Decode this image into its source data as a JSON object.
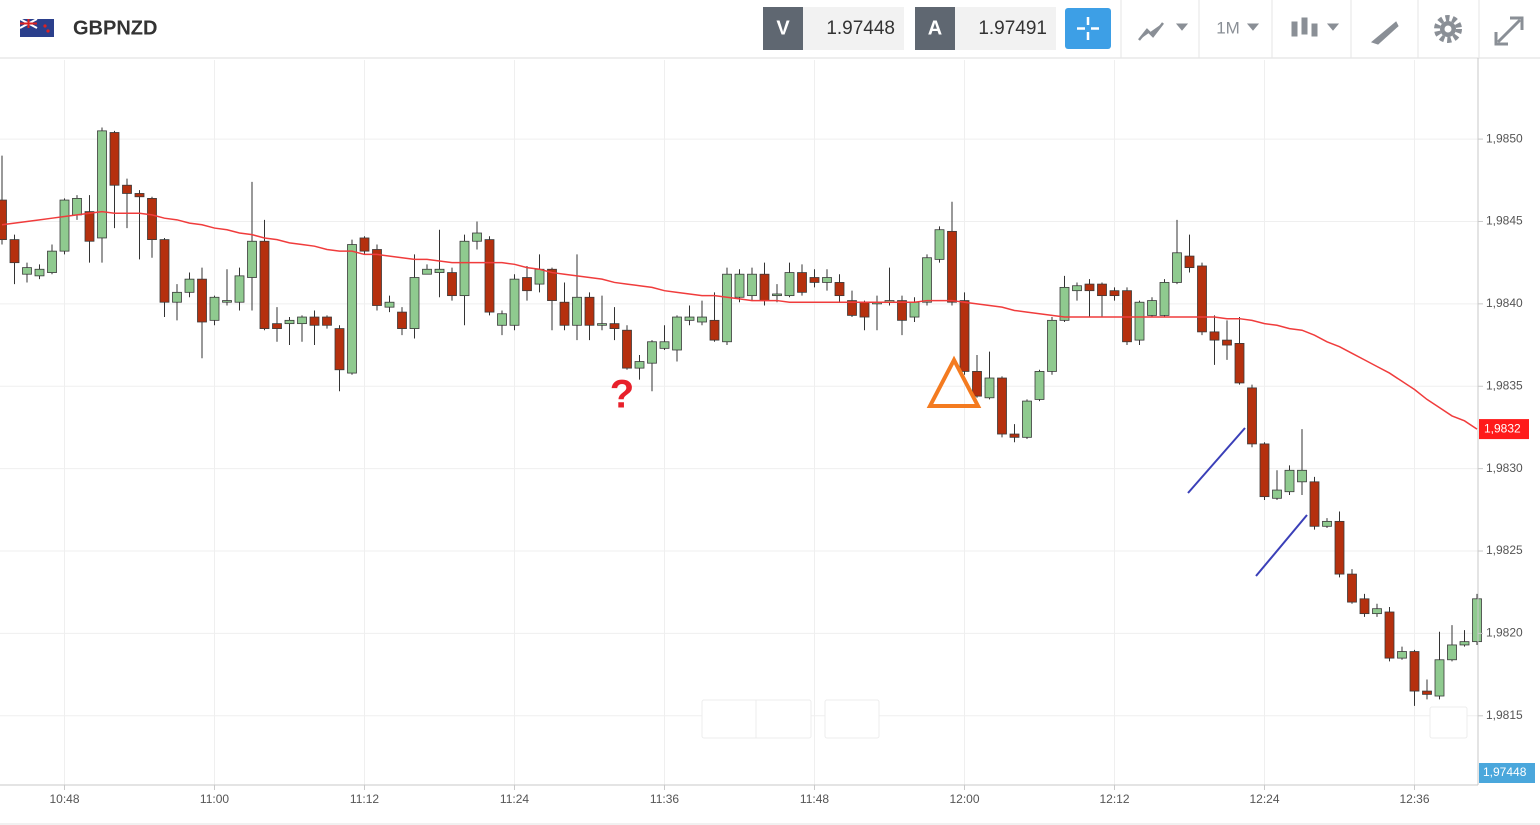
{
  "header": {
    "symbol": "GBPNZD",
    "sell_label": "V",
    "sell_price": "1.97448",
    "buy_label": "A",
    "buy_price": "1.97491",
    "timeframe": "1M"
  },
  "chart_data": {
    "type": "candlestick",
    "categories": [
      null,
      null,
      null,
      null,
      null,
      "10:48",
      null,
      null,
      null,
      null,
      null,
      null,
      null,
      null,
      null,
      null,
      null,
      "11:00",
      null,
      null,
      null,
      null,
      null,
      null,
      null,
      null,
      null,
      null,
      null,
      "11:12",
      null,
      null,
      null,
      null,
      null,
      null,
      null,
      null,
      null,
      null,
      null,
      "11:24",
      null,
      null,
      null,
      null,
      null,
      null,
      null,
      null,
      null,
      null,
      null,
      "11:36",
      null,
      null,
      null,
      null,
      null,
      null,
      null,
      null,
      null,
      null,
      null,
      "11:48",
      null,
      null,
      null,
      null,
      null,
      null,
      null,
      null,
      null,
      null,
      null,
      "12:00",
      null,
      null,
      null,
      null,
      null,
      null,
      null,
      null,
      null,
      null,
      null,
      "12:12",
      null,
      null,
      null,
      null,
      null,
      null,
      null,
      null,
      null,
      null,
      null,
      "12:24",
      null,
      null,
      null,
      null,
      null,
      null,
      null,
      null,
      null,
      null,
      null,
      "12:36",
      null,
      null,
      null,
      null,
      null
    ],
    "open": [
      1.98463,
      1.98439,
      1.98418,
      1.98417,
      1.98419,
      1.98432,
      1.98454,
      1.98456,
      1.9844,
      1.98504,
      1.98472,
      1.98467,
      1.98464,
      1.98439,
      1.98401,
      1.98407,
      1.98415,
      1.9839,
      1.98401,
      1.98401,
      1.98416,
      1.98438,
      1.98388,
      1.98388,
      1.98388,
      1.98392,
      1.98392,
      1.98385,
      1.98358,
      1.9844,
      1.98433,
      1.98398,
      1.98395,
      1.98385,
      1.98418,
      1.98419,
      1.98419,
      1.98405,
      1.98438,
      1.98439,
      1.98387,
      1.98387,
      1.98416,
      1.98412,
      1.98421,
      1.98401,
      1.98387,
      1.98404,
      1.98387,
      1.98388,
      1.98384,
      1.98361,
      1.98364,
      1.98373,
      1.98372,
      1.9839,
      1.98389,
      1.9839,
      1.98377,
      1.98404,
      1.98405,
      1.98418,
      1.98405,
      1.98405,
      1.98419,
      1.98416,
      1.98413,
      1.98413,
      1.98402,
      1.98401,
      1.984,
      1.98401,
      1.98402,
      1.98392,
      1.98401,
      1.98427,
      1.98444,
      1.98402,
      1.98359,
      1.98343,
      1.98355,
      1.98321,
      1.98319,
      1.98342,
      1.98359,
      1.9839,
      1.98408,
      1.98412,
      1.98412,
      1.98408,
      1.98408,
      1.98378,
      1.98393,
      1.98393,
      1.98413,
      1.98429,
      1.98423,
      1.98383,
      1.98378,
      1.98376,
      1.98349,
      1.98315,
      1.98282,
      1.98286,
      1.98292,
      1.98292,
      1.98265,
      1.98268,
      1.98236,
      1.98221,
      1.98212,
      1.98213,
      1.98185,
      1.98189,
      1.98165,
      1.98162,
      1.98184,
      1.98193,
      1.98195
    ],
    "high": [
      1.9849,
      1.98442,
      1.98425,
      1.98424,
      1.98436,
      1.98464,
      1.98466,
      1.98466,
      1.98507,
      1.98505,
      1.98476,
      1.98469,
      1.98465,
      1.9844,
      1.98412,
      1.98419,
      1.98422,
      1.98405,
      1.98421,
      1.98422,
      1.98474,
      1.98451,
      1.98398,
      1.98392,
      1.98393,
      1.98396,
      1.98393,
      1.98387,
      1.98439,
      1.98441,
      1.98436,
      1.98405,
      1.98398,
      1.9843,
      1.98424,
      1.98445,
      1.98422,
      1.98442,
      1.9845,
      1.98441,
      1.98396,
      1.98418,
      1.98423,
      1.9843,
      1.98422,
      1.98413,
      1.9843,
      1.98407,
      1.98405,
      1.98398,
      1.98387,
      1.98369,
      1.98378,
      1.98387,
      1.98393,
      1.98399,
      1.98402,
      1.98407,
      1.98422,
      1.98421,
      1.98422,
      1.98425,
      1.98412,
      1.98425,
      1.98424,
      1.98421,
      1.98421,
      1.98418,
      1.98408,
      1.98402,
      1.98405,
      1.98422,
      1.98405,
      1.98404,
      1.9843,
      1.98447,
      1.98462,
      1.98407,
      1.98369,
      1.98371,
      1.98356,
      1.98327,
      1.98342,
      1.9836,
      1.98392,
      1.98417,
      1.98413,
      1.98415,
      1.98413,
      1.9841,
      1.9841,
      1.98402,
      1.98404,
      1.98415,
      1.98451,
      1.98442,
      1.98425,
      1.98393,
      1.9839,
      1.98392,
      1.98351,
      1.98316,
      1.98299,
      1.98302,
      1.98324,
      1.98295,
      1.9827,
      1.98274,
      1.98239,
      1.98224,
      1.98218,
      1.98216,
      1.98192,
      1.9819,
      1.98172,
      1.98201,
      1.98205,
      1.98202,
      1.98224
    ],
    "low": [
      1.98436,
      1.98412,
      1.98413,
      1.98415,
      1.98418,
      1.9843,
      1.98451,
      1.98425,
      1.98425,
      1.98446,
      1.98446,
      1.98427,
      1.98428,
      1.98392,
      1.9839,
      1.98404,
      1.98367,
      1.98387,
      1.98399,
      1.98396,
      1.98396,
      1.98384,
      1.98377,
      1.98375,
      1.98377,
      1.98375,
      1.98385,
      1.98347,
      1.98357,
      1.9843,
      1.98396,
      1.98395,
      1.98381,
      1.98379,
      1.98418,
      1.98404,
      1.98402,
      1.98387,
      1.98433,
      1.98393,
      1.98381,
      1.98384,
      1.98402,
      1.98407,
      1.98384,
      1.98384,
      1.98378,
      1.98378,
      1.98384,
      1.98378,
      1.9836,
      1.98354,
      1.98347,
      1.98372,
      1.98365,
      1.98387,
      1.98387,
      1.98377,
      1.98375,
      1.98401,
      1.98402,
      1.98399,
      1.98401,
      1.98404,
      1.98405,
      1.9841,
      1.98408,
      1.98401,
      1.98392,
      1.98384,
      1.98384,
      1.98399,
      1.98381,
      1.98389,
      1.98399,
      1.98425,
      1.98399,
      1.98357,
      1.98343,
      1.98342,
      1.98319,
      1.98316,
      1.98318,
      1.98341,
      1.98357,
      1.98389,
      1.98402,
      1.98392,
      1.98392,
      1.98402,
      1.98375,
      1.98375,
      1.98392,
      1.98392,
      1.98412,
      1.98419,
      1.98381,
      1.98363,
      1.98366,
      1.98351,
      1.98313,
      1.98281,
      1.98281,
      1.98284,
      1.98284,
      1.98263,
      1.98264,
      1.98234,
      1.98218,
      1.9821,
      1.9821,
      1.98183,
      1.98184,
      1.98156,
      1.9816,
      1.9816,
      1.98183,
      1.98192,
      1.98193
    ],
    "close": [
      1.98439,
      1.98425,
      1.98422,
      1.98421,
      1.98432,
      1.98463,
      1.98464,
      1.98438,
      1.98505,
      1.98472,
      1.98467,
      1.98465,
      1.98439,
      1.98401,
      1.98407,
      1.98415,
      1.98389,
      1.98404,
      1.98402,
      1.98417,
      1.98438,
      1.98385,
      1.98385,
      1.9839,
      1.98392,
      1.98387,
      1.98387,
      1.9836,
      1.98436,
      1.98432,
      1.98399,
      1.98401,
      1.98385,
      1.98416,
      1.98421,
      1.98421,
      1.98405,
      1.98438,
      1.98443,
      1.98395,
      1.98394,
      1.98415,
      1.98408,
      1.98421,
      1.98402,
      1.98387,
      1.98404,
      1.98387,
      1.98388,
      1.98385,
      1.98361,
      1.98365,
      1.98377,
      1.98377,
      1.98392,
      1.98392,
      1.98392,
      1.98378,
      1.98418,
      1.98418,
      1.98418,
      1.98402,
      1.98406,
      1.98419,
      1.98407,
      1.98413,
      1.98416,
      1.98405,
      1.98393,
      1.98392,
      1.98401,
      1.98402,
      1.9839,
      1.98401,
      1.98428,
      1.98445,
      1.98401,
      1.98359,
      1.98344,
      1.98355,
      1.98321,
      1.98319,
      1.98341,
      1.98359,
      1.9839,
      1.9841,
      1.98411,
      1.98408,
      1.98405,
      1.98405,
      1.98377,
      1.98401,
      1.98402,
      1.98413,
      1.98431,
      1.98422,
      1.98383,
      1.98378,
      1.98375,
      1.98352,
      1.98315,
      1.98283,
      1.98287,
      1.98299,
      1.98299,
      1.98265,
      1.98268,
      1.98236,
      1.98219,
      1.98212,
      1.98215,
      1.98185,
      1.98189,
      1.98165,
      1.98163,
      1.98184,
      1.98193,
      1.98195,
      1.98221
    ],
    "up_color": "#8fca8f",
    "down_color": "#b5300e",
    "moving_average": {
      "color": "#f03c3c",
      "value_label": "1,9832",
      "values": [
        1.98448,
        1.98449,
        1.9845,
        1.98451,
        1.98452,
        1.98453,
        1.98454,
        1.98455,
        1.98456,
        1.98455,
        1.98455,
        1.98455,
        1.98454,
        1.98452,
        1.98451,
        1.98449,
        1.98448,
        1.98446,
        1.98445,
        1.98443,
        1.98442,
        1.9844,
        1.98439,
        1.98437,
        1.98436,
        1.98435,
        1.98433,
        1.98432,
        1.98432,
        1.9843,
        1.9843,
        1.98429,
        1.98428,
        1.98427,
        1.98427,
        1.98426,
        1.98425,
        1.98425,
        1.98425,
        1.98425,
        1.98425,
        1.98424,
        1.98422,
        1.98421,
        1.98419,
        1.98418,
        1.98417,
        1.98416,
        1.98415,
        1.98413,
        1.98412,
        1.98411,
        1.9841,
        1.98408,
        1.98407,
        1.98406,
        1.98405,
        1.98405,
        1.98404,
        1.98403,
        1.98402,
        1.98402,
        1.98402,
        1.98401,
        1.98401,
        1.98401,
        1.98401,
        1.98401,
        1.98401,
        1.98401,
        1.98401,
        1.98401,
        1.98401,
        1.98401,
        1.98402,
        1.98402,
        1.98402,
        1.98401,
        1.984,
        1.98399,
        1.98398,
        1.98396,
        1.98395,
        1.98394,
        1.98393,
        1.98392,
        1.98392,
        1.98392,
        1.98392,
        1.98392,
        1.98392,
        1.98392,
        1.98392,
        1.98392,
        1.98392,
        1.98392,
        1.98392,
        1.98392,
        1.98391,
        1.98391,
        1.9839,
        1.98388,
        1.98387,
        1.98385,
        1.98384,
        1.98381,
        1.98377,
        1.98374,
        1.9837,
        1.98366,
        1.98362,
        1.98358,
        1.98353,
        1.98348,
        1.98342,
        1.98337,
        1.98332,
        1.98329,
        1.98324
      ]
    },
    "price_tag": "1,97448",
    "annotations": [
      {
        "text": "?",
        "color": "#e8202a"
      }
    ],
    "ylim": [
      1.98108,
      1.98548
    ],
    "yticks": [
      {
        "value": 1.9815,
        "label": "1,9815"
      },
      {
        "value": 1.982,
        "label": "1,9820"
      },
      {
        "value": 1.9825,
        "label": "1,9825"
      },
      {
        "value": 1.983,
        "label": "1,9830"
      },
      {
        "value": 1.9835,
        "label": "1,9835"
      },
      {
        "value": 1.984,
        "label": "1,9840"
      },
      {
        "value": 1.9845,
        "label": "1,9845"
      },
      {
        "value": 1.985,
        "label": "1,9850"
      }
    ],
    "grid": true
  }
}
